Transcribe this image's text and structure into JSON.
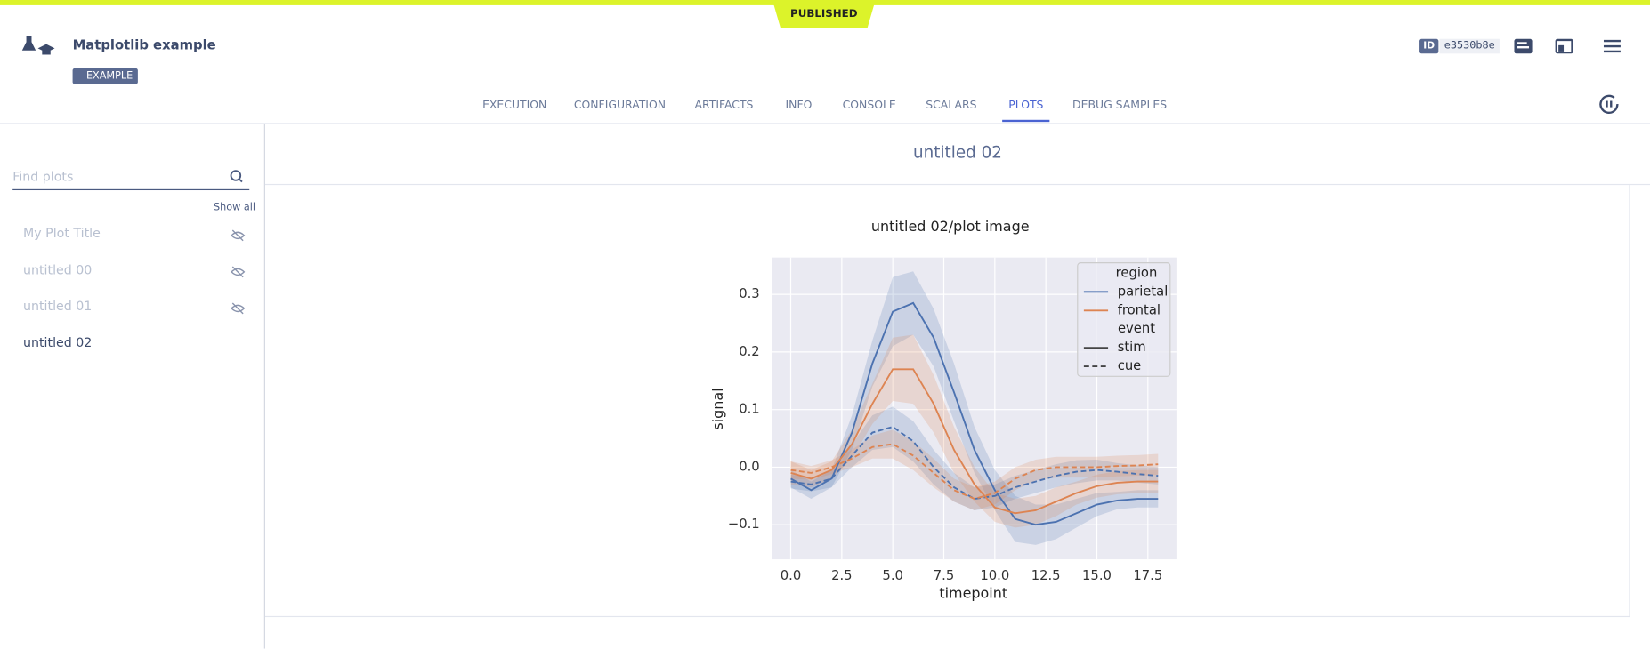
{
  "status": "PUBLISHED",
  "header": {
    "title": "Matplotlib example",
    "tag": "EXAMPLE",
    "id_label": "ID",
    "id": "e3530b8e"
  },
  "tabs": [
    {
      "label": "EXECUTION",
      "active": false
    },
    {
      "label": "CONFIGURATION",
      "active": false
    },
    {
      "label": "ARTIFACTS",
      "active": false
    },
    {
      "label": "INFO",
      "active": false
    },
    {
      "label": "CONSOLE",
      "active": false
    },
    {
      "label": "SCALARS",
      "active": false
    },
    {
      "label": "PLOTS",
      "active": true
    },
    {
      "label": "DEBUG SAMPLES",
      "active": false
    }
  ],
  "sidebar": {
    "search_placeholder": "Find plots",
    "show_all": "Show all",
    "items": [
      {
        "label": "My Plot Title",
        "hidden": true
      },
      {
        "label": "untitled 00",
        "hidden": true
      },
      {
        "label": "untitled 01",
        "hidden": true
      },
      {
        "label": "untitled 02",
        "hidden": false
      }
    ]
  },
  "section_title": "untitled 02",
  "plot": {
    "type": "line",
    "title": "untitled 02/plot image",
    "x_label": "timepoint",
    "y_label": "signal",
    "x": [
      0,
      1,
      2,
      3,
      4,
      5,
      6,
      7,
      8,
      9,
      10,
      11,
      12,
      13,
      14,
      15,
      16,
      17,
      18
    ],
    "xlim": [
      -0.9,
      18.9
    ],
    "ylim": [
      -0.16,
      0.364
    ],
    "xticks": [
      {
        "value": 0,
        "label": "0.0"
      },
      2.5,
      {
        "value": 5,
        "label": "5.0"
      },
      7.5,
      {
        "value": 10,
        "label": "10.0"
      },
      12.5,
      {
        "value": 15,
        "label": "15.0"
      },
      17.5
    ],
    "yticks": [
      {
        "value": -0.1,
        "label": "−0.1"
      },
      {
        "value": 0,
        "label": "0.0"
      },
      0.1,
      0.2,
      0.3
    ],
    "grid": true,
    "legend": {
      "position": "upper right",
      "groups": [
        {
          "title": "region",
          "entries": [
            {
              "name": "parietal",
              "color": "#4c72b0"
            },
            {
              "name": "frontal",
              "color": "#dd8452"
            }
          ]
        },
        {
          "title": "event",
          "entries": [
            {
              "name": "stim",
              "dash": "solid"
            },
            {
              "name": "cue",
              "dash": "dashed"
            }
          ]
        }
      ]
    },
    "series": [
      {
        "region": "parietal",
        "event": "stim",
        "values": [
          -0.02,
          -0.04,
          -0.02,
          0.06,
          0.18,
          0.27,
          0.285,
          0.225,
          0.13,
          0.03,
          -0.04,
          -0.09,
          -0.1,
          -0.095,
          -0.08,
          -0.065,
          -0.058,
          -0.055,
          -0.055
        ],
        "lower": [
          -0.035,
          -0.055,
          -0.035,
          0.03,
          0.14,
          0.21,
          0.23,
          0.175,
          0.08,
          -0.01,
          -0.075,
          -0.13,
          -0.135,
          -0.125,
          -0.105,
          -0.085,
          -0.073,
          -0.07,
          -0.07
        ],
        "upper": [
          -0.005,
          -0.025,
          -0.005,
          0.09,
          0.22,
          0.33,
          0.34,
          0.275,
          0.18,
          0.07,
          -0.005,
          -0.05,
          -0.065,
          -0.065,
          -0.055,
          -0.045,
          -0.043,
          -0.04,
          -0.04
        ]
      },
      {
        "region": "parietal",
        "event": "cue",
        "values": [
          -0.025,
          -0.03,
          -0.02,
          0.02,
          0.06,
          0.07,
          0.045,
          0.0,
          -0.035,
          -0.055,
          -0.05,
          -0.035,
          -0.025,
          -0.015,
          -0.008,
          -0.005,
          -0.008,
          -0.012,
          -0.015
        ],
        "lower": [
          -0.037,
          -0.042,
          -0.035,
          0.0,
          0.03,
          0.035,
          0.01,
          -0.03,
          -0.06,
          -0.075,
          -0.07,
          -0.055,
          -0.045,
          -0.035,
          -0.028,
          -0.023,
          -0.023,
          -0.027,
          -0.03
        ],
        "upper": [
          -0.013,
          -0.018,
          -0.005,
          0.04,
          0.09,
          0.105,
          0.08,
          0.03,
          -0.01,
          -0.035,
          -0.03,
          -0.015,
          -0.005,
          0.005,
          0.012,
          0.013,
          0.007,
          0.003,
          0.0
        ]
      },
      {
        "region": "frontal",
        "event": "stim",
        "values": [
          -0.01,
          -0.02,
          -0.005,
          0.04,
          0.11,
          0.17,
          0.17,
          0.11,
          0.03,
          -0.03,
          -0.07,
          -0.08,
          -0.075,
          -0.06,
          -0.045,
          -0.033,
          -0.027,
          -0.025,
          -0.025
        ],
        "lower": [
          -0.03,
          -0.035,
          -0.02,
          0.015,
          0.075,
          0.115,
          0.11,
          0.06,
          -0.01,
          -0.06,
          -0.095,
          -0.105,
          -0.1,
          -0.085,
          -0.065,
          -0.053,
          -0.047,
          -0.045,
          -0.045
        ],
        "upper": [
          0.01,
          -0.005,
          0.01,
          0.065,
          0.145,
          0.225,
          0.23,
          0.16,
          0.07,
          0.0,
          -0.045,
          -0.055,
          -0.05,
          -0.035,
          -0.025,
          -0.013,
          -0.007,
          -0.005,
          -0.005
        ]
      },
      {
        "region": "frontal",
        "event": "cue",
        "values": [
          -0.005,
          -0.01,
          0.0,
          0.015,
          0.035,
          0.04,
          0.02,
          -0.01,
          -0.04,
          -0.055,
          -0.045,
          -0.02,
          -0.005,
          0.0,
          0.0,
          0.0,
          0.002,
          0.003,
          0.005
        ],
        "lower": [
          -0.02,
          -0.022,
          -0.012,
          0.0,
          0.015,
          0.015,
          -0.005,
          -0.035,
          -0.06,
          -0.075,
          -0.065,
          -0.04,
          -0.023,
          -0.018,
          -0.018,
          -0.018,
          -0.016,
          -0.015,
          -0.013
        ],
        "upper": [
          0.01,
          0.002,
          0.012,
          0.03,
          0.055,
          0.065,
          0.045,
          0.015,
          -0.02,
          -0.035,
          -0.025,
          0.0,
          0.013,
          0.018,
          0.018,
          0.018,
          0.02,
          0.021,
          0.023
        ]
      }
    ]
  }
}
